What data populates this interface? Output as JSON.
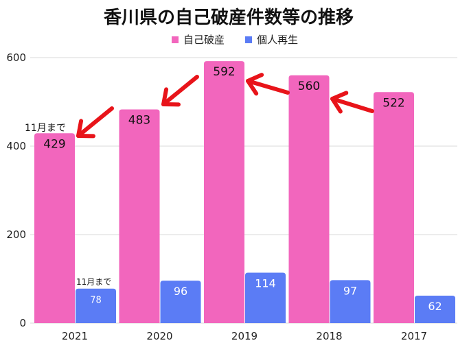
{
  "chart_data": {
    "type": "bar",
    "title": "香川県の自己破産件数等の推移",
    "categories": [
      "2021",
      "2020",
      "2019",
      "2018",
      "2017"
    ],
    "series": [
      {
        "name": "自己破産",
        "values": [
          429,
          483,
          592,
          560,
          522
        ],
        "color": "#f266bd"
      },
      {
        "name": "個人再生",
        "values": [
          78,
          96,
          114,
          97,
          62
        ],
        "color": "#5b7cf5"
      }
    ],
    "ylim": [
      0,
      600
    ],
    "yticks": [
      0,
      200,
      400,
      600
    ],
    "grid": true,
    "legend": "top-center",
    "annotations": {
      "bankruptcy_2021_note": "11月まで",
      "rehab_2021_note": "11月まで"
    },
    "arrows": [
      {
        "from": "2020",
        "to": "2021",
        "color": "#e8141a"
      },
      {
        "from": "2019",
        "to": "2020",
        "color": "#e8141a"
      },
      {
        "from": "2018",
        "to": "2019",
        "color": "#e8141a"
      },
      {
        "from": "2017",
        "to": "2018",
        "color": "#e8141a"
      }
    ]
  }
}
